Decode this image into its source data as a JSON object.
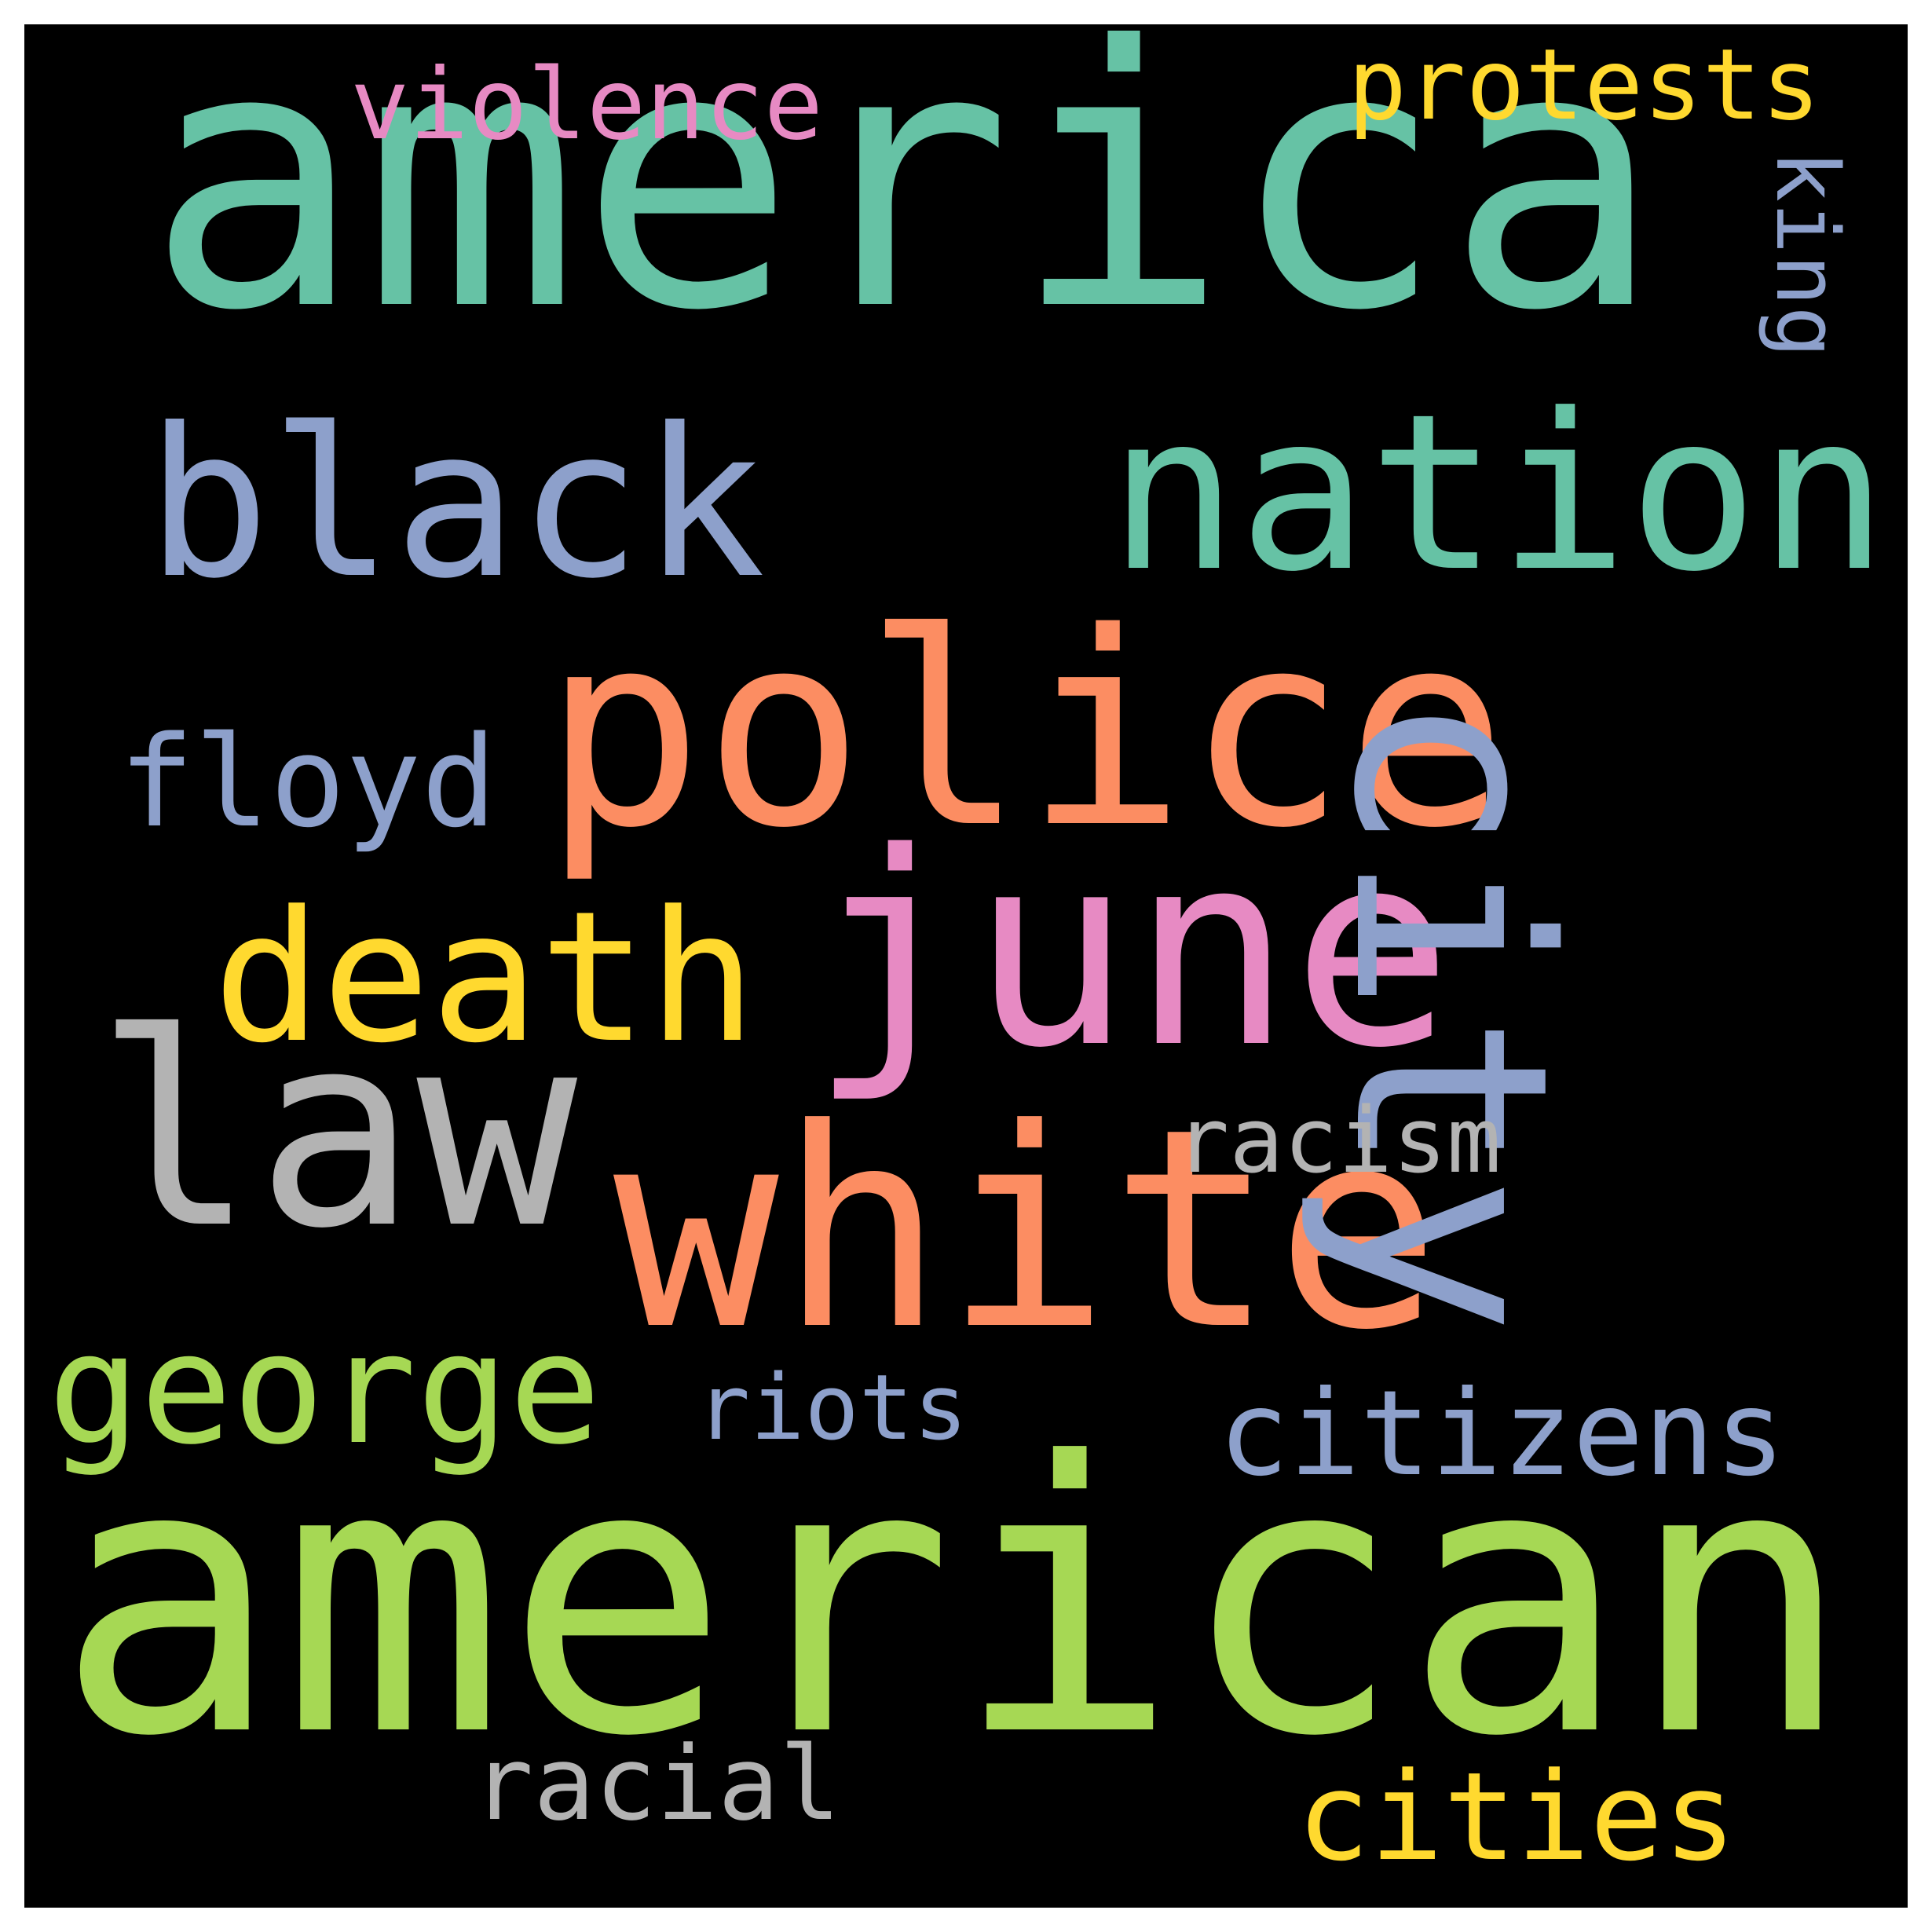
{
  "words": [
    {
      "text": "america",
      "color": "#66c2a5"
    },
    {
      "text": "american",
      "color": "#a6d854"
    },
    {
      "text": "police",
      "color": "#fc8d62"
    },
    {
      "text": "white",
      "color": "#fc8d62"
    },
    {
      "text": "june",
      "color": "#e78ac3"
    },
    {
      "text": "city",
      "color": "#8da0cb"
    },
    {
      "text": "law",
      "color": "#b3b3b3"
    },
    {
      "text": "black",
      "color": "#8da0cb"
    },
    {
      "text": "nation",
      "color": "#66c2a5"
    },
    {
      "text": "death",
      "color": "#ffd92f"
    },
    {
      "text": "george",
      "color": "#a6d854"
    },
    {
      "text": "citizens",
      "color": "#8da0cb"
    },
    {
      "text": "cities",
      "color": "#ffd92f"
    },
    {
      "text": "floyd",
      "color": "#8da0cb"
    },
    {
      "text": "violence",
      "color": "#e78ac3"
    },
    {
      "text": "protests",
      "color": "#ffd92f"
    },
    {
      "text": "racism",
      "color": "#b3b3b3"
    },
    {
      "text": "riots",
      "color": "#8da0cb"
    },
    {
      "text": "racial",
      "color": "#b3b3b3"
    },
    {
      "text": "king",
      "color": "#8da0cb"
    }
  ]
}
